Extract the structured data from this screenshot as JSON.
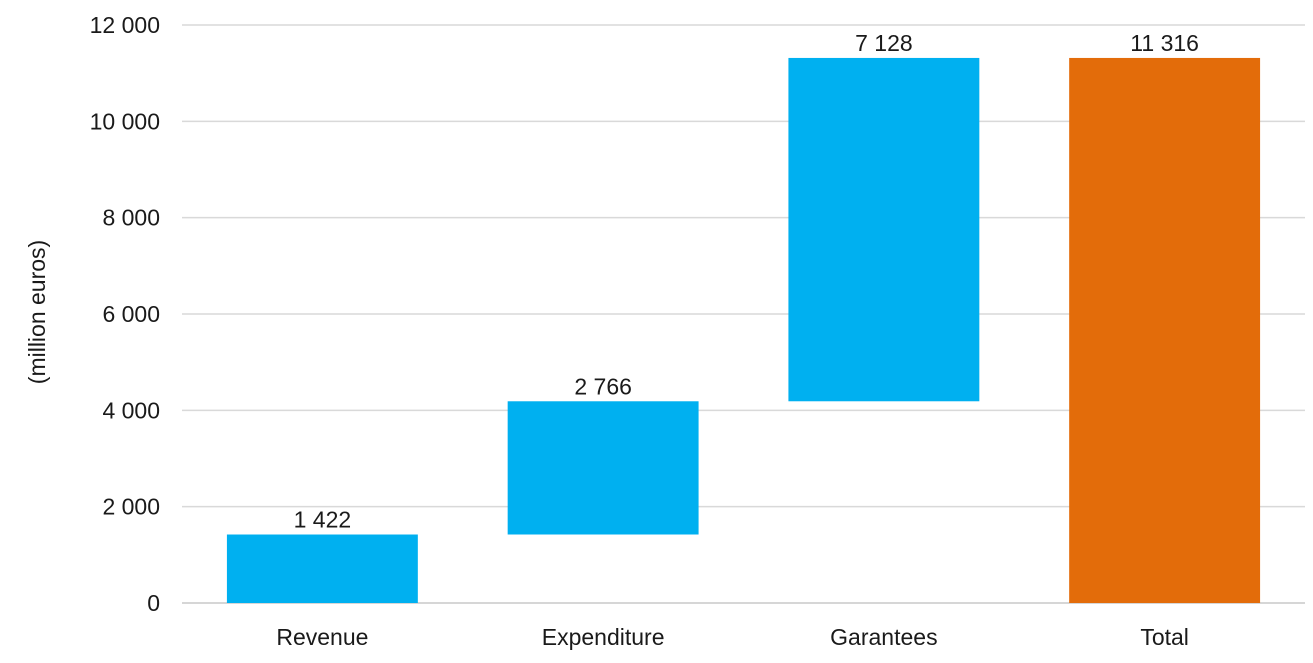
{
  "chart_data": {
    "type": "bar",
    "subtype": "waterfall",
    "categories": [
      "Revenue",
      "Expenditure",
      "Garantees",
      "Total"
    ],
    "values": [
      1422,
      2766,
      7128,
      11316
    ],
    "value_labels": [
      "1 422",
      "2 766",
      "7 128",
      "11 316"
    ],
    "is_total": [
      false,
      false,
      false,
      true
    ],
    "ylabel": "(million euros)",
    "ylim": [
      0,
      12000
    ],
    "yticks": [
      0,
      2000,
      4000,
      6000,
      8000,
      10000,
      12000
    ],
    "ytick_labels": [
      "0",
      "2 000",
      "4 000",
      "6 000",
      "8 000",
      "10 000",
      "12 000"
    ],
    "grid": true,
    "legend": "none",
    "colors": {
      "increase": "#00b0f0",
      "total": "#e36c0a"
    }
  }
}
